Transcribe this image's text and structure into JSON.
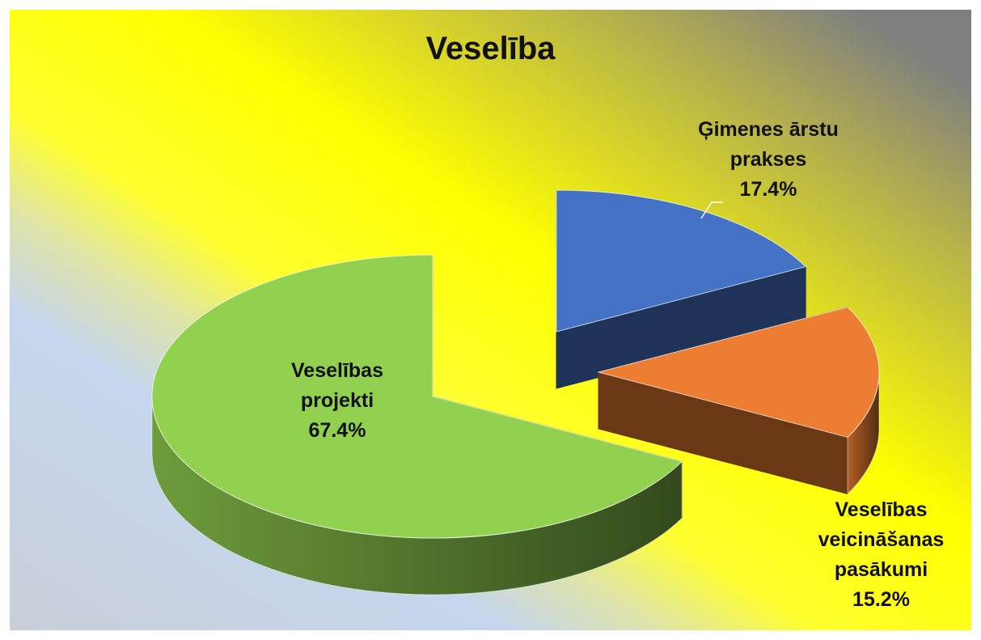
{
  "chart_data": {
    "type": "pie3d",
    "title": "Veselība",
    "categories": [
      "Ģimenes ārstu prakses",
      "Veselības veicināšanas pasākumi",
      "Veselības projekti"
    ],
    "values": [
      17.4,
      15.2,
      67.4
    ],
    "value_labels": [
      "17.4%",
      "15.2%",
      "67.4%"
    ],
    "colors": [
      "#4472c4",
      "#ed7d31",
      "#92d050"
    ]
  }
}
